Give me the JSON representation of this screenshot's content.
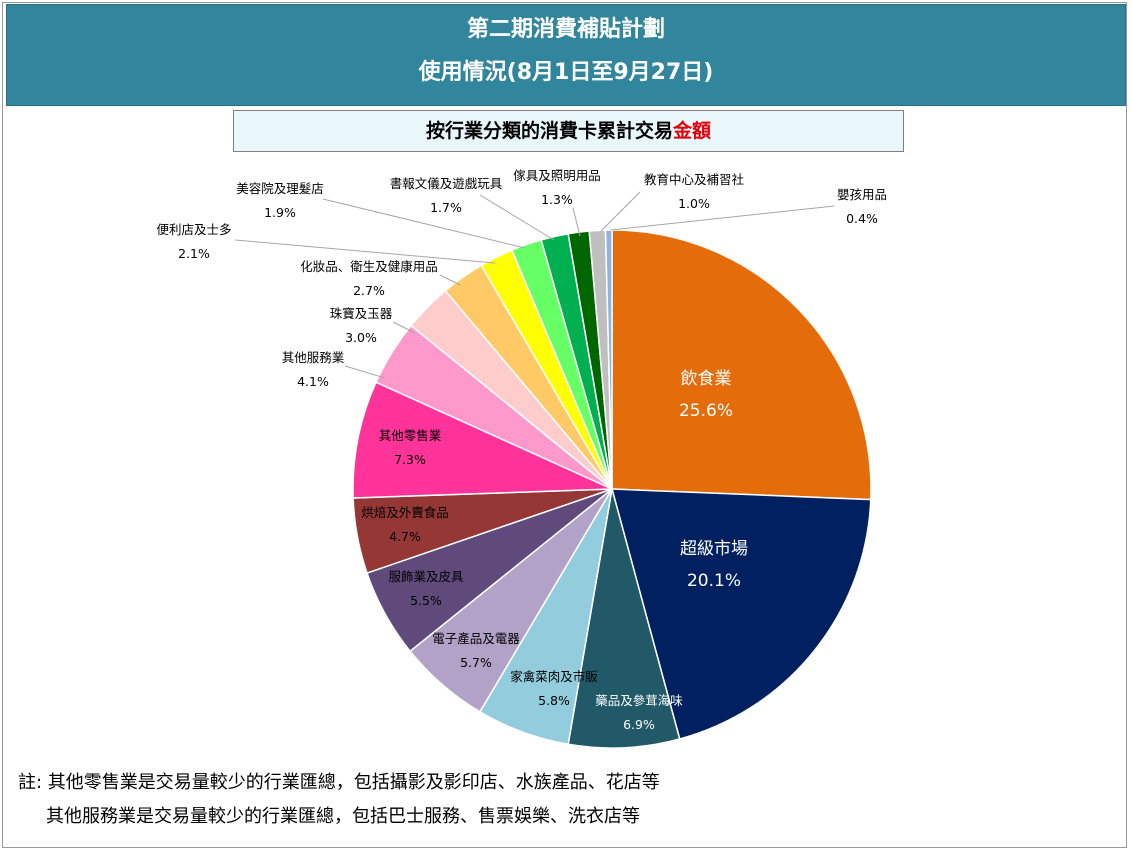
{
  "header": {
    "title_line1": "第二期消費補貼計劃",
    "title_line2": "使用情況(8月1日至9月27日)",
    "banner_color": "#31859c"
  },
  "subtitle": {
    "text_main": "按行業分類的消費卡累計交易",
    "text_highlight": "金額",
    "highlight_color": "#e0000b"
  },
  "notes": {
    "line1": "註: 其他零售業是交易量較少的行業匯總，包括攝影及影印店、水族產品、花店等",
    "line2": "其他服務業是交易量較少的行業匯總，包括巴士服務、售票娛樂、洗衣店等"
  },
  "chart_data": {
    "type": "pie",
    "title": "按行業分類的消費卡累計交易金額",
    "unit": "%",
    "start": "12 o'clock",
    "direction": "clockwise",
    "slices": [
      {
        "label": "飲食業",
        "value": 25.6,
        "value_label": "25.6%",
        "color": "#e46c0a"
      },
      {
        "label": "超級市場",
        "value": 20.1,
        "value_label": "20.1%",
        "color": "#002060"
      },
      {
        "label": "藥品及參茸海味",
        "value": 6.9,
        "value_label": "6.9%",
        "color": "#215968"
      },
      {
        "label": "家禽菜肉及市販",
        "value": 5.8,
        "value_label": "5.8%",
        "color": "#93cddd"
      },
      {
        "label": "電子產品及電器",
        "value": 5.7,
        "value_label": "5.7%",
        "color": "#b3a2c7"
      },
      {
        "label": "服飾業及皮具",
        "value": 5.5,
        "value_label": "5.5%",
        "color": "#604a7b"
      },
      {
        "label": "烘焙及外賣食品",
        "value": 4.7,
        "value_label": "4.7%",
        "color": "#953735"
      },
      {
        "label": "其他零售業",
        "value": 7.3,
        "value_label": "7.3%",
        "color": "#ff3399"
      },
      {
        "label": "其他服務業",
        "value": 4.1,
        "value_label": "4.1%",
        "color": "#ff99cc"
      },
      {
        "label": "珠寶及玉器",
        "value": 3.0,
        "value_label": "3.0%",
        "color": "#ffcccc"
      },
      {
        "label": "化妝品、衛生及健康用品",
        "value": 2.7,
        "value_label": "2.7%",
        "color": "#ffc966"
      },
      {
        "label": "便利店及士多",
        "value": 2.1,
        "value_label": "2.1%",
        "color": "#ffff00"
      },
      {
        "label": "美容院及理髮店",
        "value": 1.9,
        "value_label": "1.9%",
        "color": "#66ff66"
      },
      {
        "label": "書報文儀及遊戲玩具",
        "value": 1.7,
        "value_label": "1.7%",
        "color": "#00b050"
      },
      {
        "label": "傢具及照明用品",
        "value": 1.3,
        "value_label": "1.3%",
        "color": "#006600"
      },
      {
        "label": "教育中心及補習社",
        "value": 1.0,
        "value_label": "1.0%",
        "color": "#bfbfbf"
      },
      {
        "label": "嬰孩用品",
        "value": 0.4,
        "value_label": "0.4%",
        "color": "#8db4e2"
      }
    ]
  }
}
